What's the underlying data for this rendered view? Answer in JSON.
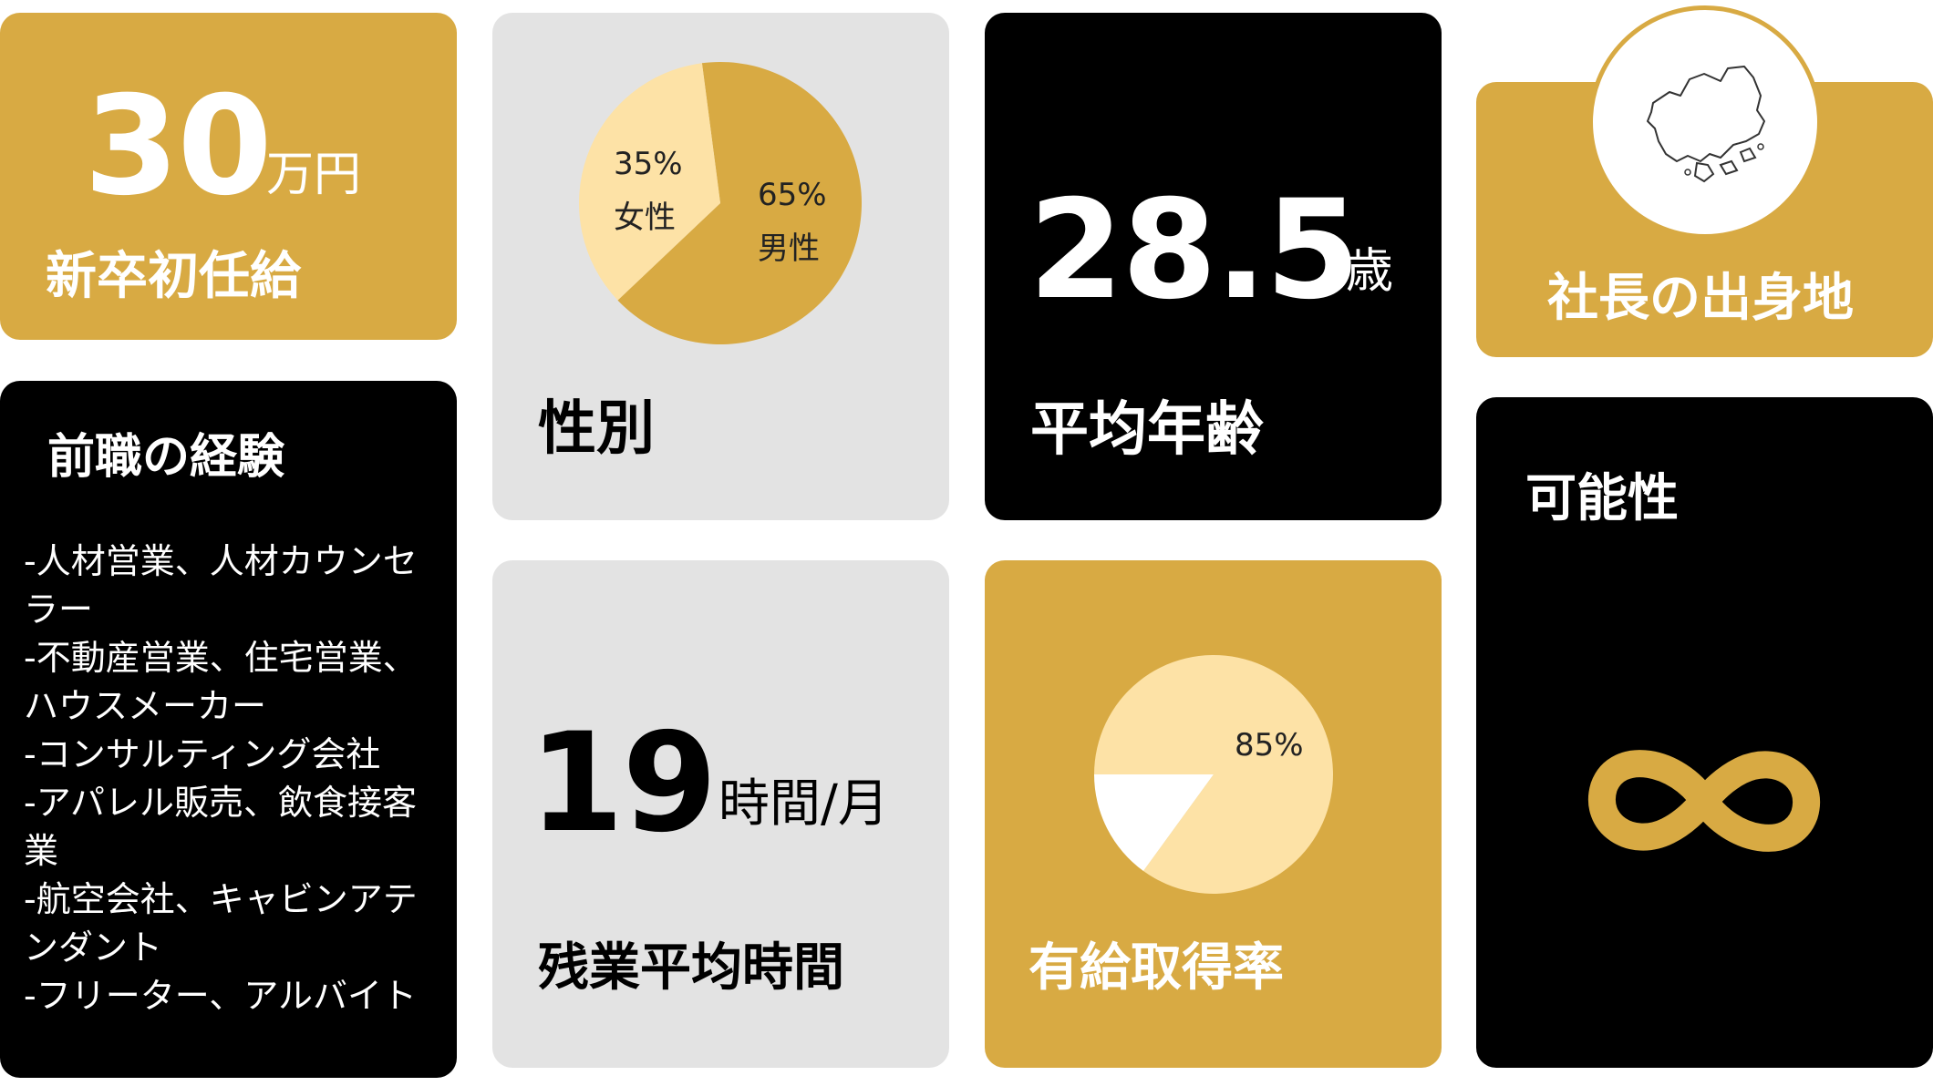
{
  "salary": {
    "value": "30",
    "unit": "万円",
    "title": "新卒初任給"
  },
  "gender": {
    "title": "性別",
    "female_pct": "35%",
    "female_label": "女性",
    "male_pct": "65%",
    "male_label": "男性",
    "female_share": 0.35,
    "colors": {
      "male": "#d8aa43",
      "female": "#fde2a6"
    }
  },
  "age": {
    "value": "28.5",
    "unit": "歳",
    "title": "平均年齢"
  },
  "origin": {
    "title": "社長の出身地",
    "icon": "hiroshima-map-icon"
  },
  "experience": {
    "title": "前職の経験",
    "lines": [
      "-人材営業、人材カウンセ",
      "ラー",
      "-不動産営業、住宅営業、",
      "ハウスメーカー",
      "-コンサルティング会社",
      "-アパレル販売、飲食接客",
      "業",
      "-航空会社、キャビンアテ",
      "ンダント",
      "-フリーター、アルバイト"
    ]
  },
  "overtime": {
    "value": "19",
    "unit": "時間/月",
    "title": "残業平均時間"
  },
  "paid_leave": {
    "title": "有給取得率",
    "pct": "85%",
    "share": 0.85,
    "colors": {
      "taken": "#fde2a6",
      "rest": "#ffffff"
    }
  },
  "potential": {
    "title": "可能性",
    "icon": "infinity-icon"
  }
}
